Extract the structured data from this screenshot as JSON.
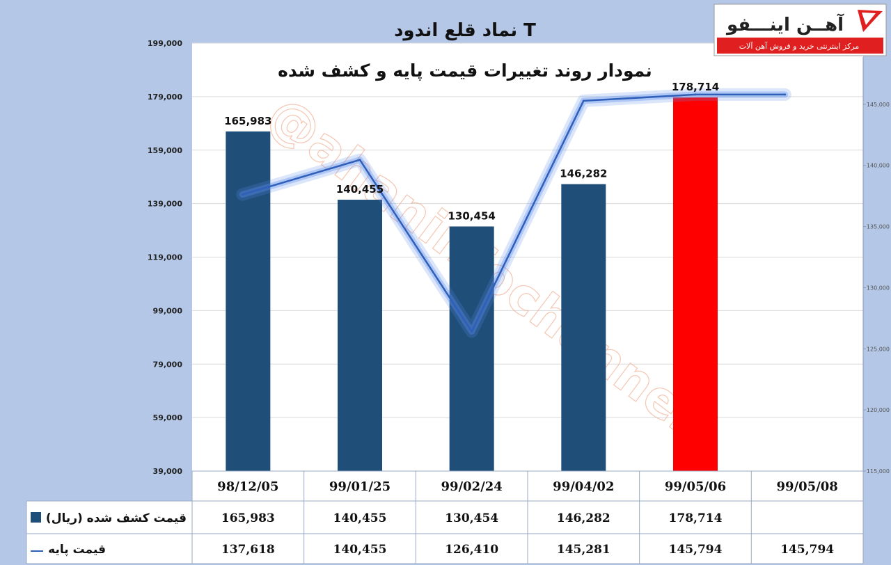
{
  "title": "نماد قلع اندود T",
  "subtitle": "نمودار روند تغییرات قیمت پایه و کشف شده",
  "watermark": "@ahaninfochannel",
  "logo": {
    "name": "آهــن اینـــفو",
    "tagline": "مرکز اینترنتی خرید و فروش آهن آلات"
  },
  "colors": {
    "bar": "#1f4e79",
    "bar_highlight": "#ff0000",
    "line": "#2f5fb8",
    "glow": "#5b8def",
    "plot_bg": "#ffffff",
    "page_bg": "#b4c7e7"
  },
  "chart_data": {
    "type": "bar",
    "categories": [
      "98/12/05",
      "99/01/25",
      "99/02/24",
      "99/04/02",
      "99/05/06",
      "99/05/08"
    ],
    "series": [
      {
        "name": "قیمت کشف شده (ریال)",
        "type": "bar",
        "axis": "left",
        "values": [
          165983,
          140455,
          130454,
          146282,
          178714,
          null
        ],
        "value_labels": [
          "165,983",
          "140,455",
          "130,454",
          "146,282",
          "178,714",
          ""
        ],
        "highlight_index": 4
      },
      {
        "name": "قیمت پایه",
        "type": "line",
        "axis": "right",
        "values": [
          137618,
          140455,
          126410,
          145281,
          145794,
          145794
        ],
        "value_labels": [
          "137,618",
          "140,455",
          "126,410",
          "145,281",
          "145,794",
          "145,794"
        ]
      }
    ],
    "y_left": {
      "ylim": [
        39000,
        199000
      ],
      "ticks": [
        39000,
        59000,
        79000,
        99000,
        119000,
        139000,
        159000,
        179000,
        199000
      ],
      "tick_labels": [
        "39,000",
        "59,000",
        "79,000",
        "99,000",
        "119,000",
        "139,000",
        "159,000",
        "179,000",
        "199,000"
      ]
    },
    "y_right": {
      "ylim": [
        115000,
        150000
      ],
      "ticks": [
        115000,
        120000,
        125000,
        130000,
        135000,
        140000,
        145000
      ],
      "tick_labels": [
        "115,000",
        "120,000",
        "125,000",
        "130,000",
        "135,000",
        "140,000",
        "145,000"
      ]
    },
    "grid": true,
    "legend": "table-bottom"
  }
}
